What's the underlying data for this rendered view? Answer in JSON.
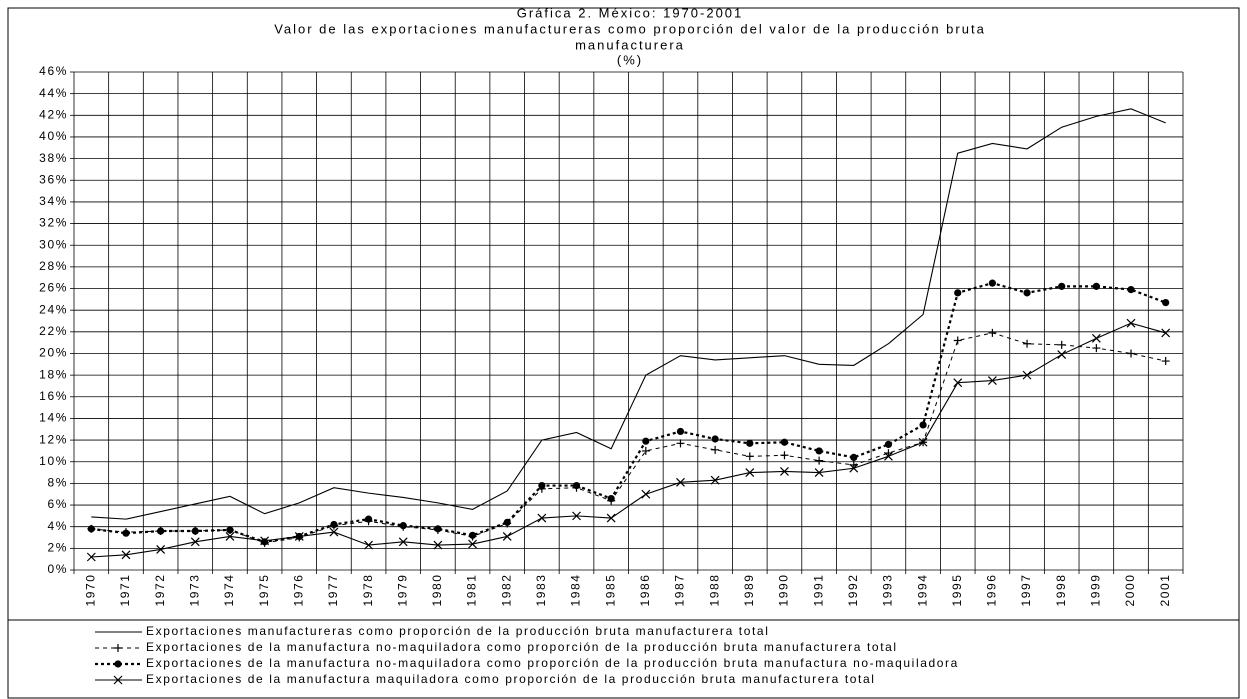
{
  "chart_data": {
    "type": "line",
    "title": "Gráfica 2. México: 1970-2001",
    "subtitle": [
      "Valor de las exportaciones manufactureras como proporción del valor de la producción bruta",
      "manufacturera",
      "(%)"
    ],
    "categories": [
      "1970",
      "1971",
      "1972",
      "1973",
      "1974",
      "1975",
      "1976",
      "1977",
      "1978",
      "1979",
      "1980",
      "1981",
      "1982",
      "1983",
      "1984",
      "1985",
      "1986",
      "1987",
      "1988",
      "1989",
      "1990",
      "1991",
      "1992",
      "1993",
      "1994",
      "1995",
      "1996",
      "1997",
      "1998",
      "1999",
      "2000",
      "2001"
    ],
    "series": [
      {
        "name": "Exportaciones manufactureras como proporción de la producción bruta manufacturera total",
        "color": "#000000",
        "dash": "solid",
        "marker": "none",
        "values": [
          4.9,
          4.7,
          5.4,
          6.1,
          6.8,
          5.2,
          6.2,
          7.6,
          7.1,
          6.7,
          6.2,
          5.6,
          7.3,
          12.0,
          12.7,
          11.2,
          18.0,
          19.8,
          19.4,
          19.6,
          19.8,
          19.0,
          18.9,
          20.9,
          23.6,
          38.5,
          39.4,
          38.9,
          40.9,
          41.9,
          42.6,
          41.3
        ]
      },
      {
        "name": "Exportaciones de la manufactura no-maquiladora como proporción de la producción bruta manufacturera total",
        "color": "#000000",
        "dash": "dashed",
        "marker": "plus",
        "values": [
          3.8,
          3.5,
          3.6,
          3.6,
          3.7,
          2.5,
          3.0,
          4.1,
          4.5,
          4.0,
          3.7,
          3.1,
          4.3,
          7.5,
          7.6,
          6.4,
          11.0,
          11.7,
          11.1,
          10.5,
          10.6,
          10.1,
          9.7,
          10.8,
          11.8,
          21.2,
          21.9,
          20.9,
          20.8,
          20.5,
          20.0,
          19.3
        ]
      },
      {
        "name": "Exportaciones de la manufactura no-maquiladora como proporción de la producción bruta manufactura no-maquiladora",
        "color": "#000000",
        "dash": "dotted-bold",
        "marker": "dot",
        "values": [
          3.8,
          3.4,
          3.6,
          3.6,
          3.7,
          2.6,
          3.1,
          4.2,
          4.7,
          4.1,
          3.8,
          3.2,
          4.4,
          7.8,
          7.8,
          6.6,
          11.9,
          12.8,
          12.1,
          11.7,
          11.8,
          11.0,
          10.4,
          11.6,
          13.4,
          25.6,
          26.5,
          25.6,
          26.2,
          26.2,
          25.9,
          24.7
        ]
      },
      {
        "name": "Exportaciones de la manufactura maquiladora como proporción de la producción bruta manufacturera total",
        "color": "#000000",
        "dash": "solid",
        "marker": "cross",
        "values": [
          1.2,
          1.4,
          1.9,
          2.6,
          3.1,
          2.7,
          3.1,
          3.5,
          2.3,
          2.6,
          2.3,
          2.4,
          3.1,
          4.8,
          5.0,
          4.8,
          7.0,
          8.1,
          8.3,
          9.0,
          9.1,
          9.0,
          9.4,
          10.5,
          11.8,
          17.3,
          17.5,
          18.0,
          19.9,
          21.4,
          22.8,
          21.9
        ]
      }
    ],
    "ylim": [
      0,
      46
    ],
    "yticks": [
      {
        "value": 0,
        "label": "0%"
      },
      {
        "value": 2,
        "label": "2%"
      },
      {
        "value": 4,
        "label": "4%"
      },
      {
        "value": 6,
        "label": "6%"
      },
      {
        "value": 8,
        "label": "8%"
      },
      {
        "value": 10,
        "label": "10%"
      },
      {
        "value": 12,
        "label": "12%"
      },
      {
        "value": 14,
        "label": "14%"
      },
      {
        "value": 16,
        "label": "16%"
      },
      {
        "value": 18,
        "label": "18%"
      },
      {
        "value": 20,
        "label": "20%"
      },
      {
        "value": 22,
        "label": "22%"
      },
      {
        "value": 24,
        "label": "24%"
      },
      {
        "value": 26,
        "label": "26%"
      },
      {
        "value": 28,
        "label": "28%"
      },
      {
        "value": 30,
        "label": "30%"
      },
      {
        "value": 32,
        "label": "32%"
      },
      {
        "value": 34,
        "label": "34%"
      },
      {
        "value": 36,
        "label": "36%"
      },
      {
        "value": 38,
        "label": "38%"
      },
      {
        "value": 40,
        "label": "40%"
      },
      {
        "value": 42,
        "label": "42%"
      },
      {
        "value": 44,
        "label": "44%"
      },
      {
        "value": 46,
        "label": "46%"
      }
    ],
    "grid": true,
    "legend": "bottom"
  }
}
